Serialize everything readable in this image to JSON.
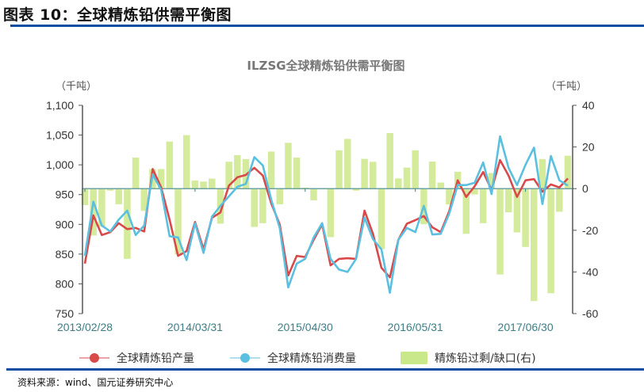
{
  "header": {
    "title": "图表 10：全球精炼铅供需平衡图"
  },
  "source": "资料来源：wind、国元证券研究中心",
  "chart_data": {
    "type": "bar+line",
    "title": "ILZSG全球精炼铅供需平衡图",
    "ylabel_left": "（千吨）",
    "ylabel_right": "（千吨）",
    "ylim_left": [
      750,
      1100
    ],
    "yticks_left": [
      "750",
      "800",
      "850",
      "900",
      "950",
      "1,000",
      "1,050",
      "1,100"
    ],
    "ylim_right": [
      -60,
      40
    ],
    "yticks_right": [
      "-60",
      "-40",
      "-20",
      "0",
      "20",
      "40"
    ],
    "x_start": "2013/02",
    "x_end": "2017/11",
    "xtick_labels": [
      "2013/02/28",
      "2014/03/31",
      "2015/04/30",
      "2016/05/31",
      "2017/06/30"
    ],
    "xtick_index": [
      0,
      13,
      26,
      39,
      52
    ],
    "grid": false,
    "legend_position": "bottom",
    "series": [
      {
        "name": "全球精炼铅产量",
        "type": "line",
        "axis": "left",
        "color": "#d9494a",
        "values": [
          834,
          915,
          882,
          887,
          902,
          892,
          894,
          888,
          993,
          962,
          908,
          847,
          855,
          904,
          858,
          911,
          920,
          965,
          979,
          983,
          995,
          982,
          935,
          900,
          814,
          847,
          845,
          874,
          900,
          831,
          842,
          843,
          842,
          923,
          884,
          827,
          811,
          874,
          901,
          907,
          914,
          895,
          887,
          922,
          974,
          946,
          964,
          988,
          958,
          1008,
          982,
          946,
          974,
          976,
          955,
          967,
          962,
          977
        ]
      },
      {
        "name": "全球精炼铅消费量",
        "type": "line",
        "axis": "left",
        "color": "#5bc0e0",
        "values": [
          847,
          938,
          898,
          888,
          908,
          923,
          882,
          898,
          984,
          958,
          880,
          878,
          840,
          902,
          852,
          913,
          931,
          947,
          963,
          968,
          1013,
          999,
          941,
          894,
          794,
          834,
          842,
          878,
          902,
          842,
          824,
          820,
          842,
          911,
          875,
          858,
          785,
          874,
          894,
          887,
          931,
          883,
          884,
          918,
          966,
          966,
          970,
          1004,
          951,
          1048,
          995,
          966,
          1000,
          1029,
          934,
          1015,
          974,
          965
        ]
      },
      {
        "name": "精炼铅过剩/缺口(右)",
        "type": "bar",
        "axis": "right",
        "color": "#d4eb9c",
        "values": [
          -7.9,
          -22.5,
          -18.3,
          -1,
          -7.5,
          -33.7,
          14.9,
          -10.7,
          9.4,
          9.4,
          22.6,
          -31.6,
          25.7,
          3.9,
          3.4,
          4.8,
          -16.8,
          12.9,
          16.1,
          14.2,
          -18.4,
          -16.6,
          17.8,
          -7.5,
          22,
          14.9,
          0.5,
          -5.6,
          0,
          -23.3,
          18.4,
          23.9,
          -1,
          14.3,
          12.9,
          -29,
          26.7,
          4.9,
          10.1,
          18.4,
          -17.1,
          13,
          2.9,
          -7.6,
          8.1,
          -21.7,
          -2.8,
          -16.6,
          7.5,
          -41.2,
          -11.4,
          -21,
          -28,
          -54,
          14.2,
          -50.2,
          -11.1,
          15.8
        ]
      }
    ]
  }
}
